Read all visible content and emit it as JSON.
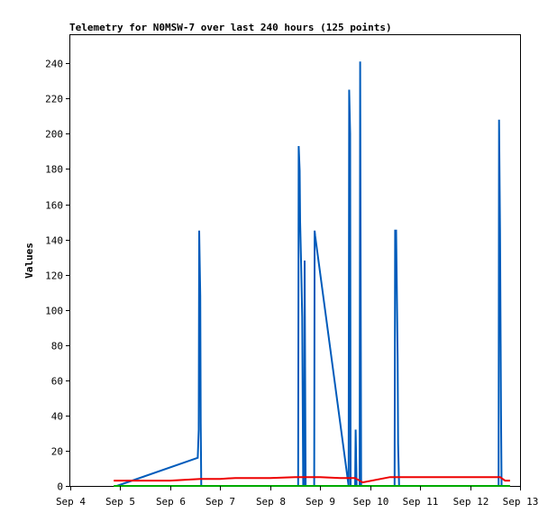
{
  "chart_data": {
    "type": "line",
    "title": "Telemetry for N0MSW-7 over last 240 hours (125 points)",
    "xlabel": "",
    "ylabel": "Values",
    "x_tick_labels": [
      "Sep 4",
      "Sep 5",
      "Sep 6",
      "Sep 7",
      "Sep 8",
      "Sep 9",
      "Sep 10",
      "Sep 11",
      "Sep 12",
      "Sep 13"
    ],
    "y_ticks": [
      0,
      20,
      40,
      60,
      80,
      100,
      120,
      140,
      160,
      180,
      200,
      220,
      240
    ],
    "xlim": [
      4,
      13
    ],
    "ylim": [
      0,
      256
    ],
    "grid": false,
    "series": [
      {
        "color": "#005bbb",
        "points": [
          [
            4.93,
            0
          ],
          [
            6.55,
            16
          ],
          [
            6.57,
            32
          ],
          [
            6.58,
            145
          ],
          [
            6.6,
            108
          ],
          [
            6.61,
            36
          ],
          [
            6.62,
            0
          ],
          [
            8.56,
            0
          ],
          [
            8.57,
            193
          ],
          [
            8.59,
            179
          ],
          [
            8.6,
            150
          ],
          [
            8.62,
            124
          ],
          [
            8.64,
            96
          ],
          [
            8.66,
            0
          ],
          [
            8.68,
            0
          ],
          [
            8.69,
            128
          ],
          [
            8.71,
            0
          ],
          [
            8.88,
            0
          ],
          [
            8.89,
            145
          ],
          [
            8.9,
            142
          ],
          [
            9.57,
            0
          ],
          [
            9.58,
            225
          ],
          [
            9.6,
            200
          ],
          [
            9.61,
            0
          ],
          [
            9.7,
            0
          ],
          [
            9.71,
            32
          ],
          [
            9.73,
            0
          ],
          [
            9.79,
            0
          ],
          [
            9.8,
            241
          ],
          [
            9.82,
            0
          ],
          [
            10.49,
            0
          ],
          [
            10.5,
            145
          ],
          [
            10.52,
            145
          ],
          [
            10.53,
            120
          ],
          [
            10.55,
            72
          ],
          [
            10.56,
            24
          ],
          [
            10.58,
            0
          ],
          [
            12.57,
            0
          ],
          [
            12.58,
            208
          ],
          [
            12.6,
            145
          ],
          [
            12.62,
            40
          ],
          [
            12.63,
            0
          ]
        ]
      },
      {
        "color": "#ee0000",
        "points": [
          [
            4.87,
            3
          ],
          [
            5.4,
            3
          ],
          [
            6.0,
            3
          ],
          [
            6.6,
            4
          ],
          [
            7.0,
            4
          ],
          [
            7.3,
            4.5
          ],
          [
            8.0,
            4.5
          ],
          [
            8.5,
            5
          ],
          [
            8.8,
            5
          ],
          [
            9.0,
            5
          ],
          [
            9.4,
            4.5
          ],
          [
            9.7,
            4.5
          ],
          [
            9.85,
            2
          ],
          [
            10.4,
            5
          ],
          [
            11.0,
            5
          ],
          [
            11.5,
            5
          ],
          [
            12.0,
            5
          ],
          [
            12.6,
            5
          ],
          [
            12.7,
            3
          ],
          [
            12.8,
            3
          ]
        ]
      },
      {
        "color": "#00aa00",
        "points": [
          [
            4.87,
            0
          ],
          [
            12.8,
            0
          ]
        ]
      }
    ]
  }
}
